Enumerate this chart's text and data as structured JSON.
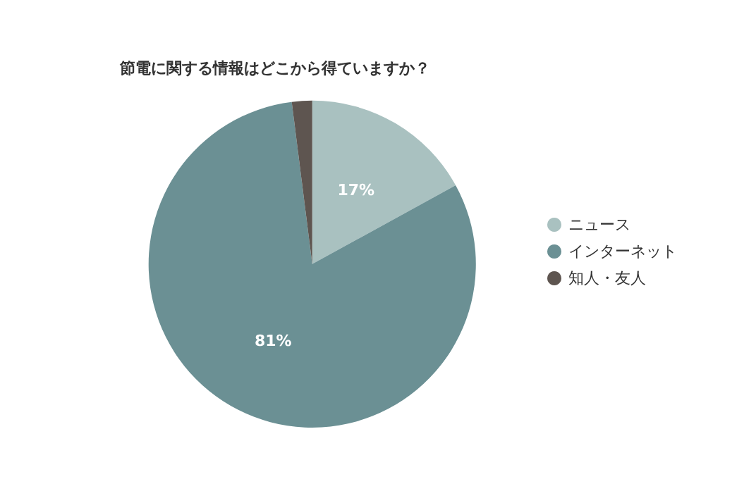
{
  "chart_data": {
    "type": "pie",
    "title": "節電に関する情報はどこから得ていますか？",
    "categories": [
      "ニュース",
      "インターネット",
      "知人・友人"
    ],
    "values": [
      17,
      81,
      2
    ],
    "colors": [
      "#a9c1c0",
      "#6b9094",
      "#5e5550"
    ],
    "value_labels": [
      "17%",
      "81%",
      null
    ],
    "legend": "right"
  }
}
